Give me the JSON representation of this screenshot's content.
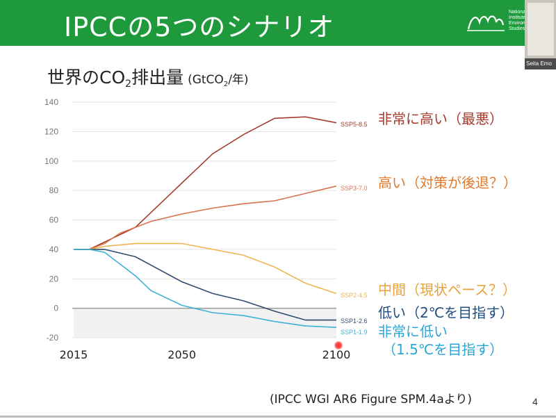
{
  "slide": {
    "title": "IPCCの5つのシナリオ",
    "header_color": "#1e9a3c",
    "logo_text": "National\nInstitute\nEnviron\nStudies,",
    "video_name": "Seita Emo",
    "page_number": "4",
    "citation": "(IPCC WGI AR6 Figure SPM.4aより)"
  },
  "chart_title": {
    "main_before": "世界のCO",
    "main_sub": "2",
    "main_after": "排出量",
    "unit_before": "(GtCO",
    "unit_sub": "2",
    "unit_after": "/年)"
  },
  "chart_data": {
    "type": "line",
    "title": "世界のCO2排出量 (GtCO2/年)",
    "xlabel": "",
    "ylabel": "",
    "xlim": [
      2015,
      2100
    ],
    "ylim": [
      -20,
      140
    ],
    "x_ticks": [
      "2015",
      "2050",
      "2100"
    ],
    "y_ticks": [
      "140",
      "120",
      "100",
      "80",
      "60",
      "40",
      "20",
      "0",
      "-20"
    ],
    "negative_region_shaded": true,
    "series": [
      {
        "name": "SSP5-8.5",
        "color": "#a63a2e",
        "annotation": "非常に高い（最悪）",
        "annotation_color": "#a63a2e",
        "points": [
          [
            2015,
            40
          ],
          [
            2020,
            40
          ],
          [
            2025,
            45
          ],
          [
            2035,
            55
          ],
          [
            2050,
            85
          ],
          [
            2060,
            105
          ],
          [
            2070,
            118
          ],
          [
            2080,
            129
          ],
          [
            2090,
            130
          ],
          [
            2100,
            126
          ]
        ]
      },
      {
        "name": "SSP3-7.0",
        "color": "#d9704e",
        "annotation": "高い（対策が後退？）",
        "annotation_color": "#e07a2e",
        "points": [
          [
            2015,
            40
          ],
          [
            2020,
            40
          ],
          [
            2025,
            44
          ],
          [
            2030,
            51
          ],
          [
            2040,
            59
          ],
          [
            2050,
            64
          ],
          [
            2060,
            68
          ],
          [
            2070,
            71
          ],
          [
            2080,
            73
          ],
          [
            2090,
            78
          ],
          [
            2100,
            83
          ]
        ]
      },
      {
        "name": "SSP2-4.5",
        "color": "#f0b350",
        "annotation": "中間（現状ペース？）",
        "annotation_color": "#e8a23a",
        "points": [
          [
            2015,
            40
          ],
          [
            2020,
            40
          ],
          [
            2025,
            42
          ],
          [
            2035,
            44
          ],
          [
            2050,
            44
          ],
          [
            2060,
            40
          ],
          [
            2070,
            36
          ],
          [
            2080,
            28
          ],
          [
            2090,
            17
          ],
          [
            2100,
            10
          ]
        ]
      },
      {
        "name": "SSP1-2.6",
        "color": "#2f4b6b",
        "annotation": "低い（2℃を目指す）",
        "annotation_color": "#1f4d80",
        "points": [
          [
            2015,
            40
          ],
          [
            2020,
            40
          ],
          [
            2025,
            40
          ],
          [
            2035,
            35
          ],
          [
            2050,
            18
          ],
          [
            2060,
            10
          ],
          [
            2070,
            5
          ],
          [
            2080,
            -2
          ],
          [
            2090,
            -8
          ],
          [
            2100,
            -8
          ]
        ]
      },
      {
        "name": "SSP1-1.9",
        "color": "#3fb0d8",
        "annotation": "非常に低い\n（1.5℃を目指す）",
        "annotation_color": "#2aa6d6",
        "points": [
          [
            2015,
            40
          ],
          [
            2020,
            40
          ],
          [
            2025,
            38
          ],
          [
            2035,
            22
          ],
          [
            2040,
            12
          ],
          [
            2050,
            2
          ],
          [
            2060,
            -3
          ],
          [
            2070,
            -5
          ],
          [
            2080,
            -9
          ],
          [
            2090,
            -12
          ],
          [
            2100,
            -13
          ]
        ]
      }
    ]
  }
}
